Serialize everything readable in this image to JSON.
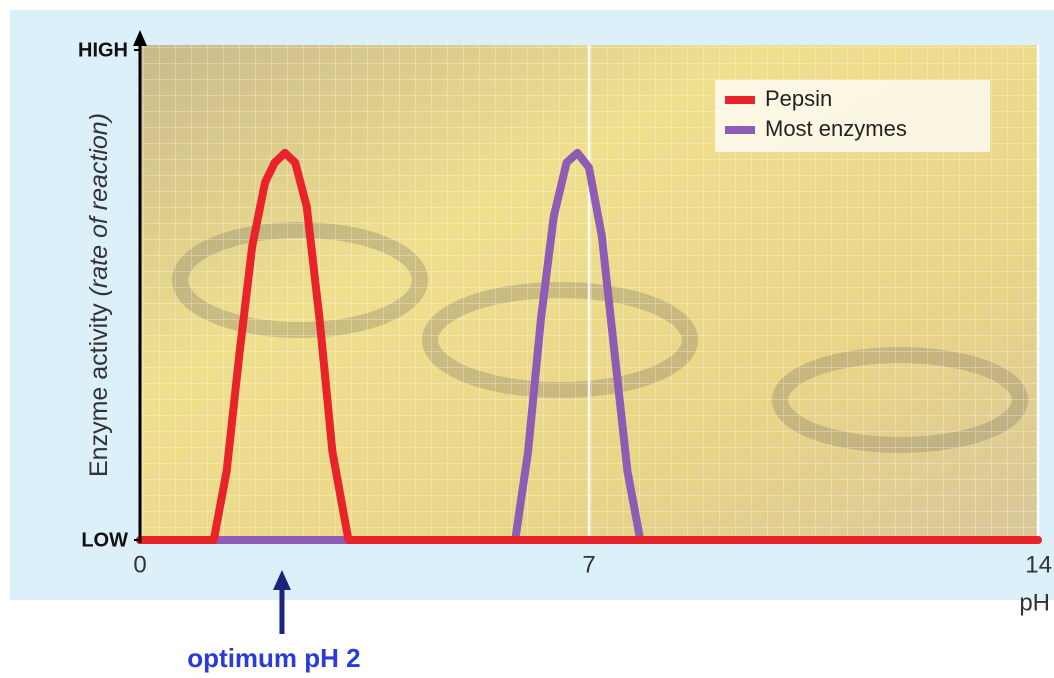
{
  "chart_data": {
    "type": "line",
    "xlabel": "pH",
    "ylabel": "Enzyme activity",
    "ylabel_note": "(rate of reaction)",
    "annotation": "optimum pH 2",
    "xlim": [
      0,
      14
    ],
    "ylim": [
      0,
      1
    ],
    "xticks": [
      0,
      7,
      14
    ],
    "yticks": [
      {
        "value": 0,
        "label": "LOW"
      },
      {
        "value": 1,
        "label": "HIGH"
      }
    ],
    "legend": "upper right",
    "series": [
      {
        "name": "Pepsin",
        "color": "#e8232a",
        "x": [
          0,
          1.15,
          1.35,
          1.55,
          1.75,
          1.95,
          2.1,
          2.26,
          2.42,
          2.6,
          2.8,
          3.0,
          3.25,
          14
        ],
        "values": [
          0,
          0,
          0.14,
          0.38,
          0.6,
          0.73,
          0.77,
          0.79,
          0.77,
          0.68,
          0.45,
          0.18,
          0,
          0
        ]
      },
      {
        "name": "Most enzymes",
        "color": "#8e5bb5",
        "x": [
          0,
          5.85,
          6.05,
          6.25,
          6.45,
          6.65,
          6.82,
          7.0,
          7.2,
          7.4,
          7.6,
          7.8,
          14
        ],
        "values": [
          0,
          0,
          0.18,
          0.45,
          0.66,
          0.77,
          0.79,
          0.76,
          0.62,
          0.38,
          0.14,
          0,
          0
        ]
      }
    ]
  }
}
